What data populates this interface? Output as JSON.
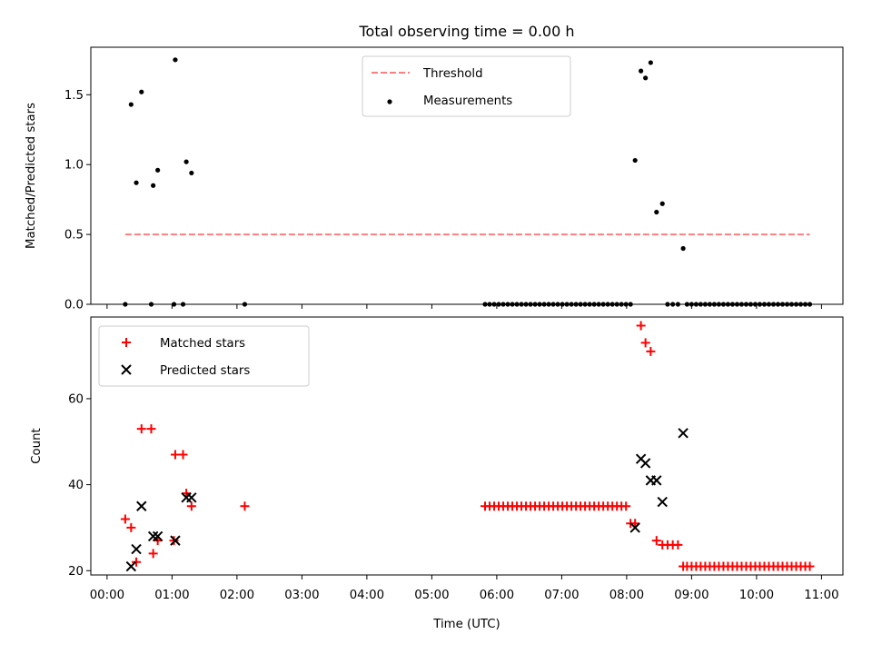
{
  "chart_data": [
    {
      "type": "scatter",
      "title": "Total observing time = 0.00 h",
      "ylabel": "Matched/Predicted stars",
      "xlabel": "",
      "xlim": [
        -0.25,
        11.33
      ],
      "ylim": [
        0,
        1.84
      ],
      "yticks": [
        0.0,
        0.5,
        1.0,
        1.5
      ],
      "ytick_labels": [
        "0.0",
        "0.5",
        "1.0",
        "1.5"
      ],
      "legend_position": "upper center",
      "series": [
        {
          "name": "Threshold",
          "kind": "line",
          "style": "dashed",
          "color": "#ff7f7f",
          "x": [
            0.28,
            10.82
          ],
          "y": [
            0.5,
            0.5
          ]
        },
        {
          "name": "Measurements",
          "kind": "scatter",
          "marker": "dot",
          "color": "#000000",
          "points": [
            [
              0.28,
              0.0
            ],
            [
              0.37,
              1.43
            ],
            [
              0.45,
              0.87
            ],
            [
              0.53,
              1.52
            ],
            [
              0.68,
              0.0
            ],
            [
              0.71,
              0.85
            ],
            [
              0.78,
              0.96
            ],
            [
              1.03,
              0.0
            ],
            [
              1.05,
              1.75
            ],
            [
              1.17,
              0.0
            ],
            [
              1.22,
              1.02
            ],
            [
              1.3,
              0.94
            ],
            [
              2.12,
              0.0
            ],
            [
              5.82,
              0.0
            ],
            [
              5.89,
              0.0
            ],
            [
              5.96,
              0.0
            ],
            [
              6.03,
              0.0
            ],
            [
              6.1,
              0.0
            ],
            [
              6.17,
              0.0
            ],
            [
              6.24,
              0.0
            ],
            [
              6.31,
              0.0
            ],
            [
              6.38,
              0.0
            ],
            [
              6.45,
              0.0
            ],
            [
              6.52,
              0.0
            ],
            [
              6.59,
              0.0
            ],
            [
              6.66,
              0.0
            ],
            [
              6.73,
              0.0
            ],
            [
              6.8,
              0.0
            ],
            [
              6.87,
              0.0
            ],
            [
              6.94,
              0.0
            ],
            [
              7.01,
              0.0
            ],
            [
              7.08,
              0.0
            ],
            [
              7.15,
              0.0
            ],
            [
              7.22,
              0.0
            ],
            [
              7.29,
              0.0
            ],
            [
              7.36,
              0.0
            ],
            [
              7.43,
              0.0
            ],
            [
              7.5,
              0.0
            ],
            [
              7.57,
              0.0
            ],
            [
              7.64,
              0.0
            ],
            [
              7.71,
              0.0
            ],
            [
              7.78,
              0.0
            ],
            [
              7.85,
              0.0
            ],
            [
              7.92,
              0.0
            ],
            [
              7.99,
              0.0
            ],
            [
              8.06,
              0.0
            ],
            [
              8.13,
              1.03
            ],
            [
              8.22,
              1.67
            ],
            [
              8.29,
              1.62
            ],
            [
              8.37,
              1.73
            ],
            [
              8.46,
              0.66
            ],
            [
              8.55,
              0.72
            ],
            [
              8.63,
              0.0
            ],
            [
              8.71,
              0.0
            ],
            [
              8.79,
              0.0
            ],
            [
              8.87,
              0.4
            ],
            [
              8.93,
              0.0
            ],
            [
              9.0,
              0.0
            ],
            [
              9.07,
              0.0
            ],
            [
              9.14,
              0.0
            ],
            [
              9.21,
              0.0
            ],
            [
              9.28,
              0.0
            ],
            [
              9.35,
              0.0
            ],
            [
              9.42,
              0.0
            ],
            [
              9.49,
              0.0
            ],
            [
              9.56,
              0.0
            ],
            [
              9.63,
              0.0
            ],
            [
              9.7,
              0.0
            ],
            [
              9.77,
              0.0
            ],
            [
              9.84,
              0.0
            ],
            [
              9.91,
              0.0
            ],
            [
              9.98,
              0.0
            ],
            [
              10.05,
              0.0
            ],
            [
              10.12,
              0.0
            ],
            [
              10.19,
              0.0
            ],
            [
              10.26,
              0.0
            ],
            [
              10.33,
              0.0
            ],
            [
              10.4,
              0.0
            ],
            [
              10.47,
              0.0
            ],
            [
              10.54,
              0.0
            ],
            [
              10.61,
              0.0
            ],
            [
              10.68,
              0.0
            ],
            [
              10.75,
              0.0
            ],
            [
              10.82,
              0.0
            ]
          ]
        }
      ]
    },
    {
      "type": "scatter",
      "title": "",
      "ylabel": "Count",
      "xlabel": "Time (UTC)",
      "xlim": [
        -0.25,
        11.33
      ],
      "ylim": [
        19,
        79
      ],
      "yticks": [
        20,
        40,
        60
      ],
      "ytick_labels": [
        "20",
        "40",
        "60"
      ],
      "xticks": [
        0,
        1,
        2,
        3,
        4,
        5,
        6,
        7,
        8,
        9,
        10,
        11
      ],
      "xtick_labels": [
        "00:00",
        "01:00",
        "02:00",
        "03:00",
        "04:00",
        "05:00",
        "06:00",
        "07:00",
        "08:00",
        "09:00",
        "10:00",
        "11:00"
      ],
      "legend_position": "upper left",
      "series": [
        {
          "name": "Matched stars",
          "kind": "scatter",
          "marker": "plus",
          "color": "#ff0000",
          "points": [
            [
              0.28,
              32
            ],
            [
              0.37,
              30
            ],
            [
              0.45,
              22
            ],
            [
              0.53,
              53
            ],
            [
              0.68,
              53
            ],
            [
              0.71,
              24
            ],
            [
              0.78,
              27
            ],
            [
              1.03,
              27
            ],
            [
              1.05,
              47
            ],
            [
              1.17,
              47
            ],
            [
              1.22,
              38
            ],
            [
              1.3,
              35
            ],
            [
              2.12,
              35
            ],
            [
              5.82,
              35
            ],
            [
              5.89,
              35
            ],
            [
              5.96,
              35
            ],
            [
              6.03,
              35
            ],
            [
              6.1,
              35
            ],
            [
              6.17,
              35
            ],
            [
              6.24,
              35
            ],
            [
              6.31,
              35
            ],
            [
              6.38,
              35
            ],
            [
              6.45,
              35
            ],
            [
              6.52,
              35
            ],
            [
              6.59,
              35
            ],
            [
              6.66,
              35
            ],
            [
              6.73,
              35
            ],
            [
              6.8,
              35
            ],
            [
              6.87,
              35
            ],
            [
              6.94,
              35
            ],
            [
              7.01,
              35
            ],
            [
              7.08,
              35
            ],
            [
              7.15,
              35
            ],
            [
              7.22,
              35
            ],
            [
              7.29,
              35
            ],
            [
              7.36,
              35
            ],
            [
              7.43,
              35
            ],
            [
              7.5,
              35
            ],
            [
              7.57,
              35
            ],
            [
              7.64,
              35
            ],
            [
              7.71,
              35
            ],
            [
              7.78,
              35
            ],
            [
              7.85,
              35
            ],
            [
              7.92,
              35
            ],
            [
              7.99,
              35
            ],
            [
              8.06,
              31
            ],
            [
              8.13,
              31
            ],
            [
              8.22,
              77
            ],
            [
              8.29,
              73
            ],
            [
              8.37,
              71
            ],
            [
              8.46,
              27
            ],
            [
              8.55,
              26
            ],
            [
              8.63,
              26
            ],
            [
              8.71,
              26
            ],
            [
              8.79,
              26
            ],
            [
              8.87,
              21
            ],
            [
              8.93,
              21
            ],
            [
              9.0,
              21
            ],
            [
              9.07,
              21
            ],
            [
              9.14,
              21
            ],
            [
              9.21,
              21
            ],
            [
              9.28,
              21
            ],
            [
              9.35,
              21
            ],
            [
              9.42,
              21
            ],
            [
              9.49,
              21
            ],
            [
              9.56,
              21
            ],
            [
              9.63,
              21
            ],
            [
              9.7,
              21
            ],
            [
              9.77,
              21
            ],
            [
              9.84,
              21
            ],
            [
              9.91,
              21
            ],
            [
              9.98,
              21
            ],
            [
              10.05,
              21
            ],
            [
              10.12,
              21
            ],
            [
              10.19,
              21
            ],
            [
              10.26,
              21
            ],
            [
              10.33,
              21
            ],
            [
              10.4,
              21
            ],
            [
              10.47,
              21
            ],
            [
              10.54,
              21
            ],
            [
              10.61,
              21
            ],
            [
              10.68,
              21
            ],
            [
              10.75,
              21
            ],
            [
              10.82,
              21
            ]
          ]
        },
        {
          "name": "Predicted stars",
          "kind": "scatter",
          "marker": "x",
          "color": "#000000",
          "points": [
            [
              0.37,
              21
            ],
            [
              0.45,
              25
            ],
            [
              0.53,
              35
            ],
            [
              0.71,
              28
            ],
            [
              0.78,
              28
            ],
            [
              1.05,
              27
            ],
            [
              1.22,
              37
            ],
            [
              1.3,
              37
            ],
            [
              8.13,
              30
            ],
            [
              8.22,
              46
            ],
            [
              8.29,
              45
            ],
            [
              8.37,
              41
            ],
            [
              8.46,
              41
            ],
            [
              8.55,
              36
            ],
            [
              8.87,
              52
            ]
          ]
        }
      ]
    }
  ]
}
